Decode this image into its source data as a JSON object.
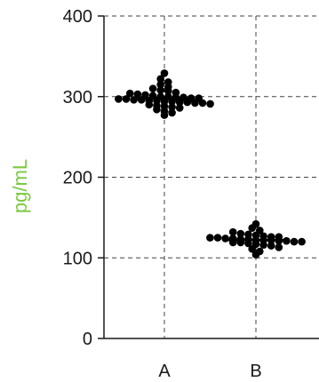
{
  "chart_data": {
    "type": "scatter",
    "title": "",
    "xlabel": "",
    "ylabel": "pg/mL",
    "ylim": [
      0,
      400
    ],
    "yticks": [
      "0",
      "100",
      "200",
      "300",
      "400"
    ],
    "categories": [
      "A",
      "B"
    ],
    "grid": true,
    "colors": {
      "points": "#000000",
      "ylabel": "#7ac943",
      "axis": "#1a1a1a",
      "grid": "#444444"
    },
    "series": [
      {
        "category": "A",
        "median": 298,
        "values": [
          329,
          322,
          318,
          315,
          312,
          310,
          308,
          307,
          305,
          304,
          303,
          302,
          301,
          300,
          300,
          299,
          299,
          298,
          298,
          297,
          297,
          296,
          296,
          295,
          295,
          294,
          294,
          293,
          293,
          292,
          292,
          291,
          290,
          289,
          288,
          287,
          286,
          284,
          282,
          280,
          277
        ]
      },
      {
        "category": "B",
        "median": 122,
        "values": [
          142,
          137,
          134,
          132,
          130,
          129,
          128,
          127,
          126,
          126,
          125,
          125,
          124,
          124,
          123,
          123,
          122,
          122,
          122,
          121,
          121,
          120,
          120,
          119,
          119,
          118,
          117,
          116,
          115,
          113,
          111,
          108,
          104
        ]
      }
    ]
  }
}
